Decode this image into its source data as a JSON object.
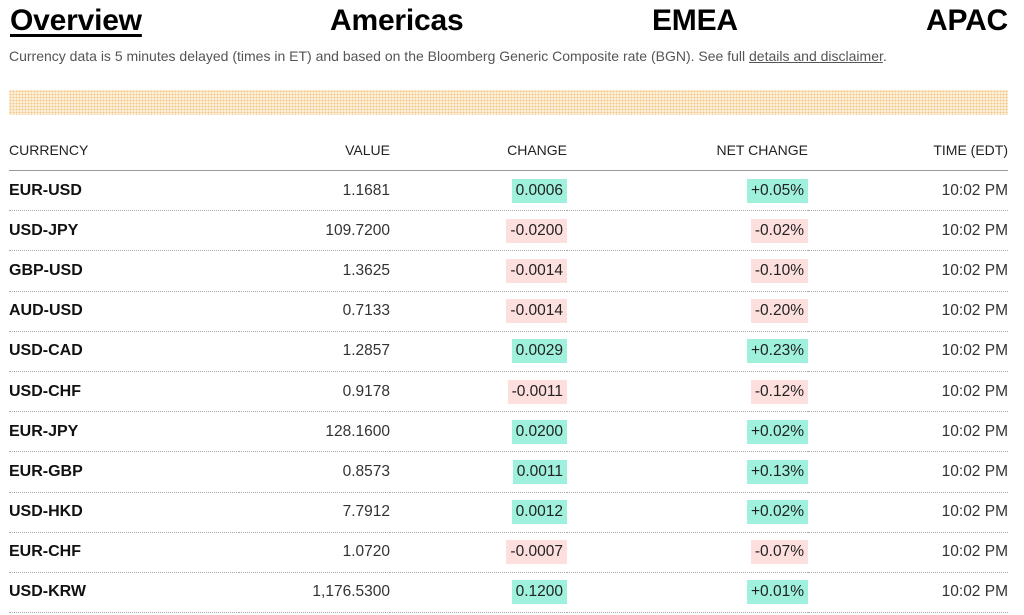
{
  "tabs": [
    {
      "label": "Overview",
      "active": true
    },
    {
      "label": "Americas",
      "active": false
    },
    {
      "label": "EMEA",
      "active": false
    },
    {
      "label": "APAC",
      "active": false
    }
  ],
  "disclaimer": {
    "text": "Currency data is 5 minutes delayed (times in ET) and based on the Bloomberg Generic Composite rate (BGN). See full ",
    "link_text": "details and disclaimer",
    "suffix": "."
  },
  "table": {
    "headers": {
      "currency": "CURRENCY",
      "value": "VALUE",
      "change": "CHANGE",
      "net_change": "NET CHANGE",
      "time": "TIME (EDT)"
    },
    "rows": [
      {
        "currency": "EUR-USD",
        "value": "1.1681",
        "change": "0.0006",
        "net_change": "+0.05%",
        "time": "10:02 PM",
        "direction": "up"
      },
      {
        "currency": "USD-JPY",
        "value": "109.7200",
        "change": "-0.0200",
        "net_change": "-0.02%",
        "time": "10:02 PM",
        "direction": "down"
      },
      {
        "currency": "GBP-USD",
        "value": "1.3625",
        "change": "-0.0014",
        "net_change": "-0.10%",
        "time": "10:02 PM",
        "direction": "down"
      },
      {
        "currency": "AUD-USD",
        "value": "0.7133",
        "change": "-0.0014",
        "net_change": "-0.20%",
        "time": "10:02 PM",
        "direction": "down"
      },
      {
        "currency": "USD-CAD",
        "value": "1.2857",
        "change": "0.0029",
        "net_change": "+0.23%",
        "time": "10:02 PM",
        "direction": "up"
      },
      {
        "currency": "USD-CHF",
        "value": "0.9178",
        "change": "-0.0011",
        "net_change": "-0.12%",
        "time": "10:02 PM",
        "direction": "down"
      },
      {
        "currency": "EUR-JPY",
        "value": "128.1600",
        "change": "0.0200",
        "net_change": "+0.02%",
        "time": "10:02 PM",
        "direction": "up"
      },
      {
        "currency": "EUR-GBP",
        "value": "0.8573",
        "change": "0.0011",
        "net_change": "+0.13%",
        "time": "10:02 PM",
        "direction": "up"
      },
      {
        "currency": "USD-HKD",
        "value": "7.7912",
        "change": "0.0012",
        "net_change": "+0.02%",
        "time": "10:02 PM",
        "direction": "up"
      },
      {
        "currency": "EUR-CHF",
        "value": "1.0720",
        "change": "-0.0007",
        "net_change": "-0.07%",
        "time": "10:02 PM",
        "direction": "down"
      },
      {
        "currency": "USD-KRW",
        "value": "1,176.5300",
        "change": "0.1200",
        "net_change": "+0.01%",
        "time": "10:02 PM",
        "direction": "up"
      }
    ]
  },
  "colors": {
    "positive_bg": "#9ff0dc",
    "negative_bg": "#fde0de",
    "dotted_bar": "#f4c98a"
  }
}
